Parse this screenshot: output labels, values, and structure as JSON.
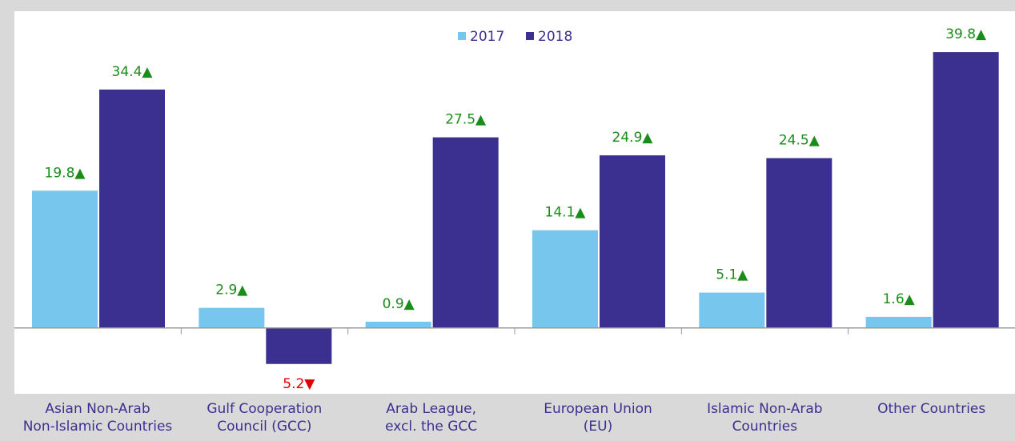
{
  "chart_data": {
    "type": "bar",
    "categories": [
      "Asian Non-Arab\nNon-Islamic Countries",
      "Gulf Cooperation\nCouncil (GCC)",
      "Arab League,\nexcl. the GCC",
      "European Union\n(EU)",
      "Islamic Non-Arab\nCountries",
      "Other Countries"
    ],
    "series": [
      {
        "name": "2017",
        "color": "#76c6ee",
        "values": [
          19.8,
          2.9,
          0.9,
          14.1,
          5.1,
          1.6
        ],
        "value_labels": [
          "19.8▲",
          "2.9▲",
          "0.9▲",
          "14.1▲",
          "5.1▲",
          "1.6▲"
        ]
      },
      {
        "name": "2018",
        "color": "#3b2f8f",
        "values": [
          34.4,
          -5.2,
          27.5,
          24.9,
          24.5,
          39.8
        ],
        "value_labels": [
          "34.4▲",
          "5.2▼",
          "27.5▲",
          "24.9▲",
          "24.5▲",
          "39.8▲"
        ]
      }
    ],
    "ylim": [
      -9.5,
      45.7
    ],
    "legend": "top"
  }
}
